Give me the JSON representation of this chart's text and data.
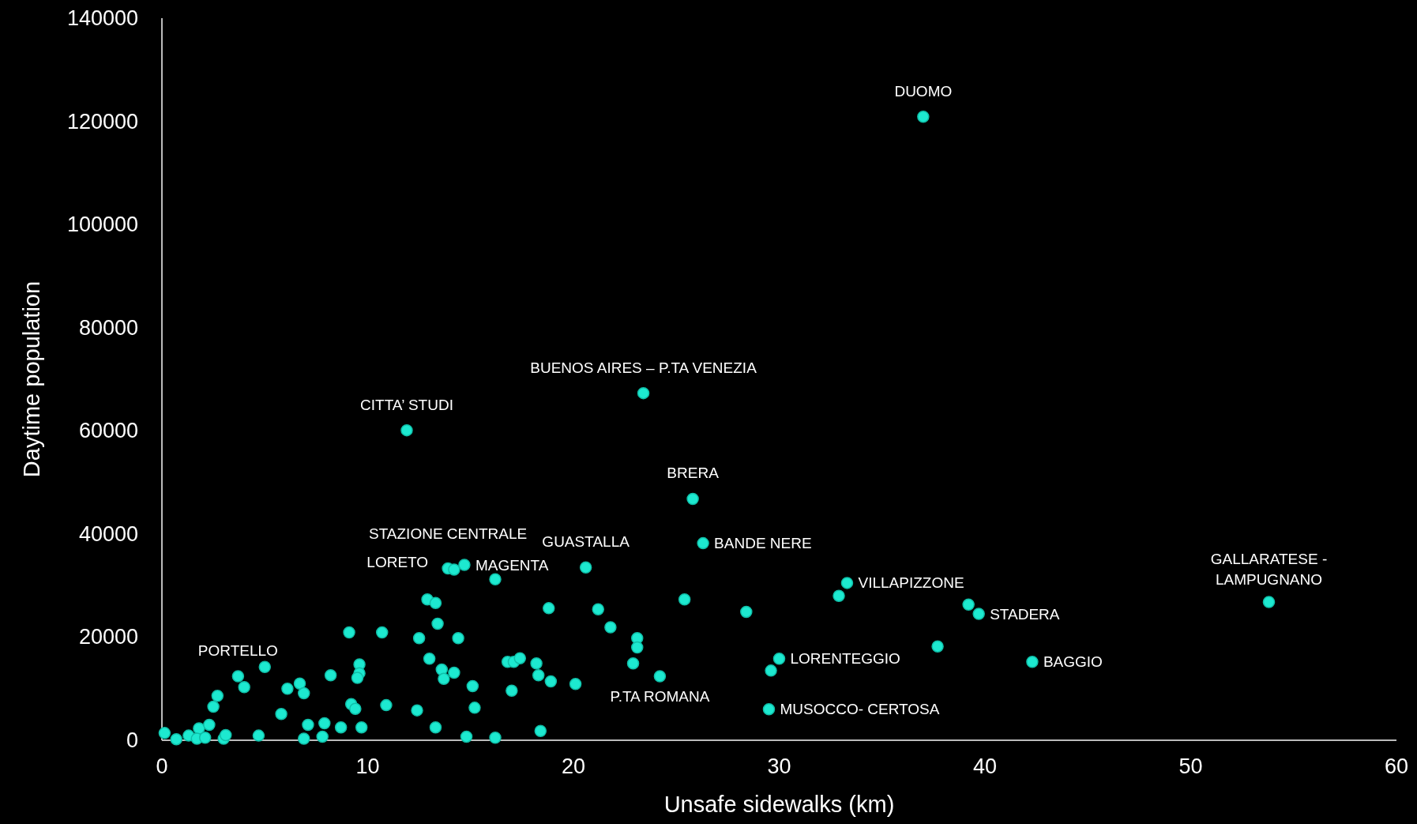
{
  "chart_data": {
    "type": "scatter",
    "xlabel": "Unsafe sidewalks (km)",
    "ylabel": "Daytime population",
    "xlim": [
      0,
      60
    ],
    "xticks": [
      0,
      10,
      20,
      30,
      40,
      50,
      60
    ],
    "ylim": [
      0,
      140000
    ],
    "yticks": [
      0,
      20000,
      40000,
      60000,
      80000,
      100000,
      120000,
      140000
    ],
    "grid": false,
    "marker": "circle",
    "series": [
      {
        "color": "#1de9d0",
        "x": [
          0.13,
          0.7,
          1.3,
          1.8,
          1.7,
          2.1,
          2.3,
          2.5,
          2.7,
          3.0,
          3.1,
          3.7,
          4.0,
          4.7,
          5.0,
          5.8,
          6.1,
          6.7,
          6.9,
          6.9,
          7.1,
          7.8,
          7.9,
          8.2,
          8.7,
          9.1,
          9.2,
          9.4,
          9.6,
          9.6,
          9.5,
          9.7,
          10.7,
          10.9,
          11.9,
          12.4,
          12.5,
          12.9,
          13.0,
          13.3,
          13.4,
          13.3,
          13.6,
          13.7,
          13.9,
          14.2,
          14.2,
          14.4,
          14.7,
          14.8,
          15.1,
          15.2,
          16.2,
          16.2,
          16.8,
          17.1,
          17.0,
          17.4,
          18.2,
          18.3,
          18.4,
          18.8,
          18.9,
          20.1,
          20.6,
          21.2,
          21.8,
          22.9,
          23.1,
          23.1,
          23.4,
          24.2,
          25.4,
          25.8,
          26.3,
          28.4,
          29.5,
          29.6,
          30.0,
          32.9,
          33.3,
          37.0,
          37.7,
          39.2,
          39.7,
          42.3,
          53.8
        ],
        "values": [
          1400,
          200,
          900,
          2300,
          300,
          500,
          3000,
          6500,
          8600,
          300,
          1000,
          12400,
          10300,
          900,
          14200,
          5100,
          10000,
          11000,
          9100,
          300,
          3000,
          700,
          3300,
          12600,
          2500,
          20900,
          7000,
          6100,
          14700,
          13000,
          12100,
          2500,
          20900,
          6800,
          60100,
          5800,
          19800,
          27300,
          15800,
          2500,
          22600,
          26600,
          13700,
          11900,
          33300,
          33100,
          13100,
          19800,
          34000,
          700,
          10500,
          6300,
          31200,
          500,
          15200,
          15200,
          9600,
          15900,
          14900,
          12600,
          1800,
          25600,
          11400,
          10900,
          33500,
          25400,
          21900,
          14900,
          19800,
          18000,
          67300,
          12400,
          27300,
          46800,
          38200,
          24900,
          6000,
          13500,
          15800,
          28000,
          30500,
          120900,
          18200,
          26300,
          24500,
          15200,
          26800
        ]
      }
    ],
    "annotations": [
      {
        "text": "DUOMO",
        "x": 37.0,
        "y": 120900
      },
      {
        "text": "BUENOS AIRES – P.TA VENEZIA",
        "x": 23.4,
        "y": 67300
      },
      {
        "text": "CITTA’ STUDI",
        "x": 11.9,
        "y": 60100
      },
      {
        "text": "BRERA",
        "x": 25.8,
        "y": 46800
      },
      {
        "text": "BANDE NERE",
        "x": 26.3,
        "y": 38200
      },
      {
        "text": "STAZIONE CENTRALE",
        "x": 13.9,
        "y": 33300
      },
      {
        "text": "LORETO",
        "x": 13.9,
        "y": 33300
      },
      {
        "text": "MAGENTA",
        "x": 14.7,
        "y": 34000
      },
      {
        "text": "GUASTALLA",
        "x": 20.6,
        "y": 33500
      },
      {
        "text": "VILLAPIZZONE",
        "x": 33.3,
        "y": 30500
      },
      {
        "text": "GALLARATESE - LAMPUGNANO",
        "x": 53.8,
        "y": 26800
      },
      {
        "text": "STADERA",
        "x": 39.7,
        "y": 24500
      },
      {
        "text": "PORTELLO",
        "x": 3.7,
        "y": 12400
      },
      {
        "text": "LORENTEGGIO",
        "x": 30.0,
        "y": 15800
      },
      {
        "text": "BAGGIO",
        "x": 42.3,
        "y": 15200
      },
      {
        "text": "P.TA ROMANA",
        "x": 24.2,
        "y": 12400
      },
      {
        "text": "MUSOCCO- CERTOSA",
        "x": 29.5,
        "y": 6000
      }
    ]
  }
}
